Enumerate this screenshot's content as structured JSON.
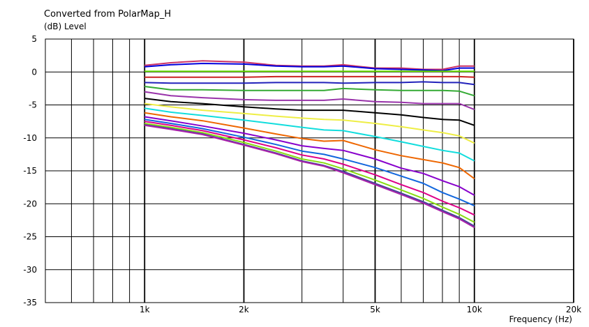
{
  "chart_data": {
    "type": "line",
    "title": "Converted from PolarMap_H",
    "ylabel": "(dB)  Level",
    "xlabel": "Frequency  (Hz)",
    "x_scale": "log",
    "xlim": [
      500,
      20000
    ],
    "ylim": [
      -35,
      5
    ],
    "grid": true,
    "x_tick_labels": [
      {
        "value": 1000,
        "label": "1k"
      },
      {
        "value": 2000,
        "label": "2k"
      },
      {
        "value": 5000,
        "label": "5k"
      },
      {
        "value": 10000,
        "label": "10k"
      },
      {
        "value": 20000,
        "label": "20k"
      }
    ],
    "x_minor_grid": [
      600,
      700,
      800,
      900,
      3000,
      4000,
      6000,
      7000,
      8000,
      9000
    ],
    "y_ticks": [
      5,
      0,
      -5,
      -10,
      -15,
      -20,
      -25,
      -30,
      -35
    ],
    "x": [
      1000,
      1200,
      1500,
      2000,
      2500,
      3000,
      3500,
      4000,
      5000,
      6000,
      7000,
      8000,
      9000,
      10000
    ],
    "series": [
      {
        "color": "#cc3366",
        "values": [
          1.0,
          1.4,
          1.7,
          1.5,
          1.0,
          0.9,
          0.9,
          1.1,
          0.6,
          0.6,
          0.4,
          0.4,
          0.9,
          0.9
        ]
      },
      {
        "color": "#0000dd",
        "values": [
          0.8,
          1.1,
          1.3,
          1.2,
          0.9,
          0.8,
          0.8,
          0.9,
          0.5,
          0.4,
          0.3,
          0.2,
          0.6,
          0.6
        ]
      },
      {
        "color": "#66dd00",
        "values": [
          0.1,
          0.1,
          0.1,
          0.1,
          0.1,
          0.1,
          0.1,
          0.1,
          0.1,
          0.1,
          0.1,
          0.1,
          0.1,
          0.1
        ]
      },
      {
        "color": "#cc2222",
        "values": [
          -0.8,
          -0.8,
          -0.8,
          -0.8,
          -0.7,
          -0.7,
          -0.7,
          -0.7,
          -0.7,
          -0.7,
          -0.7,
          -0.7,
          -0.7,
          -0.8
        ]
      },
      {
        "color": "#2222bb",
        "values": [
          -1.6,
          -1.7,
          -1.7,
          -1.7,
          -1.6,
          -1.6,
          -1.6,
          -1.7,
          -1.6,
          -1.6,
          -1.5,
          -1.6,
          -1.6,
          -1.9
        ]
      },
      {
        "color": "#33aa33",
        "values": [
          -2.2,
          -2.7,
          -2.7,
          -2.8,
          -2.8,
          -2.8,
          -2.8,
          -2.5,
          -2.7,
          -2.8,
          -2.8,
          -2.8,
          -2.9,
          -3.6
        ]
      },
      {
        "color": "#9933aa",
        "values": [
          -3.0,
          -3.6,
          -3.9,
          -4.2,
          -4.3,
          -4.3,
          -4.3,
          -4.1,
          -4.5,
          -4.6,
          -4.8,
          -4.8,
          -4.8,
          -5.7
        ]
      },
      {
        "color": "#000000",
        "values": [
          -4.0,
          -4.5,
          -4.8,
          -5.3,
          -5.6,
          -5.8,
          -5.8,
          -5.8,
          -6.2,
          -6.5,
          -6.9,
          -7.2,
          -7.3,
          -8.1
        ]
      },
      {
        "color": "#eeee44",
        "values": [
          -4.8,
          -5.3,
          -5.8,
          -6.3,
          -6.7,
          -7.0,
          -7.2,
          -7.3,
          -7.8,
          -8.3,
          -8.8,
          -9.2,
          -9.7,
          -10.8
        ]
      },
      {
        "color": "#11dddd",
        "values": [
          -5.5,
          -6.1,
          -6.6,
          -7.3,
          -7.9,
          -8.4,
          -8.8,
          -8.9,
          -9.8,
          -10.6,
          -11.3,
          -11.9,
          -12.3,
          -13.5
        ]
      },
      {
        "color": "#ee6600",
        "values": [
          -6.2,
          -6.8,
          -7.4,
          -8.5,
          -9.4,
          -10.1,
          -10.5,
          -10.4,
          -11.8,
          -12.7,
          -13.3,
          -13.8,
          -14.5,
          -16.2
        ]
      },
      {
        "color": "#8800cc",
        "values": [
          -6.8,
          -7.4,
          -8.2,
          -9.3,
          -10.3,
          -11.2,
          -11.6,
          -11.9,
          -13.2,
          -14.6,
          -15.4,
          -16.5,
          -17.4,
          -18.7
        ]
      },
      {
        "color": "#1166dd",
        "values": [
          -7.2,
          -7.8,
          -8.6,
          -9.9,
          -11.0,
          -12.0,
          -12.5,
          -13.2,
          -14.5,
          -15.8,
          -16.9,
          -18.3,
          -19.3,
          -20.3
        ]
      },
      {
        "color": "#dd0088",
        "values": [
          -7.5,
          -8.1,
          -8.9,
          -10.3,
          -11.5,
          -12.6,
          -13.2,
          -14.0,
          -15.6,
          -17.1,
          -18.3,
          -19.6,
          -20.6,
          -21.7
        ]
      },
      {
        "color": "#88dd11",
        "values": [
          -7.8,
          -8.4,
          -9.2,
          -10.7,
          -12.0,
          -13.2,
          -13.8,
          -14.7,
          -16.4,
          -17.9,
          -19.2,
          -20.5,
          -21.6,
          -22.8
        ]
      },
      {
        "color": "#444499",
        "values": [
          -8.0,
          -8.6,
          -9.4,
          -11.0,
          -12.3,
          -13.5,
          -14.2,
          -15.1,
          -16.9,
          -18.4,
          -19.7,
          -21.0,
          -22.1,
          -23.4
        ]
      },
      {
        "color": "#aa22aa",
        "values": [
          -8.1,
          -8.7,
          -9.5,
          -11.1,
          -12.4,
          -13.6,
          -14.3,
          -15.3,
          -17.1,
          -18.6,
          -19.9,
          -21.2,
          -22.3,
          -23.6
        ]
      }
    ]
  }
}
